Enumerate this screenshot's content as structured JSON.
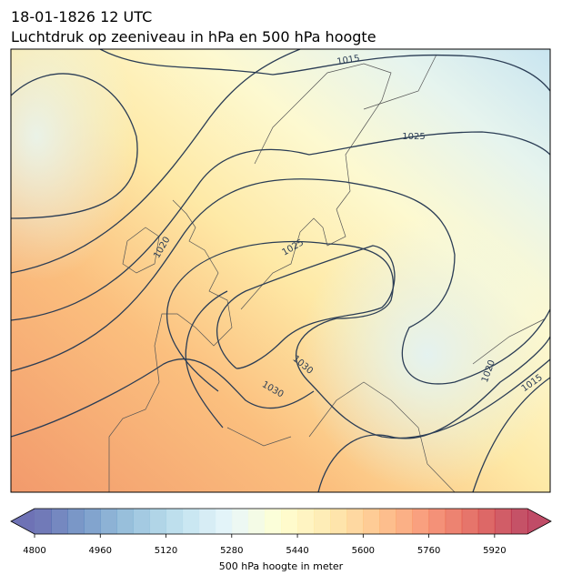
{
  "header": {
    "title_line1": "18-01-1826 12 UTC",
    "title_line2": "Luchtdruk op zeeniveau in hPa en 500 hPa hoogte"
  },
  "map": {
    "contour_labels": [
      1015,
      1025,
      1020,
      1025,
      1030,
      1030,
      1020,
      1015
    ]
  },
  "colorbar": {
    "range": [
      4800,
      6000
    ],
    "ticks": [
      4800,
      4960,
      5120,
      5280,
      5440,
      5600,
      5760,
      5920
    ],
    "label": "500 hPa hoogte in meter"
  }
}
